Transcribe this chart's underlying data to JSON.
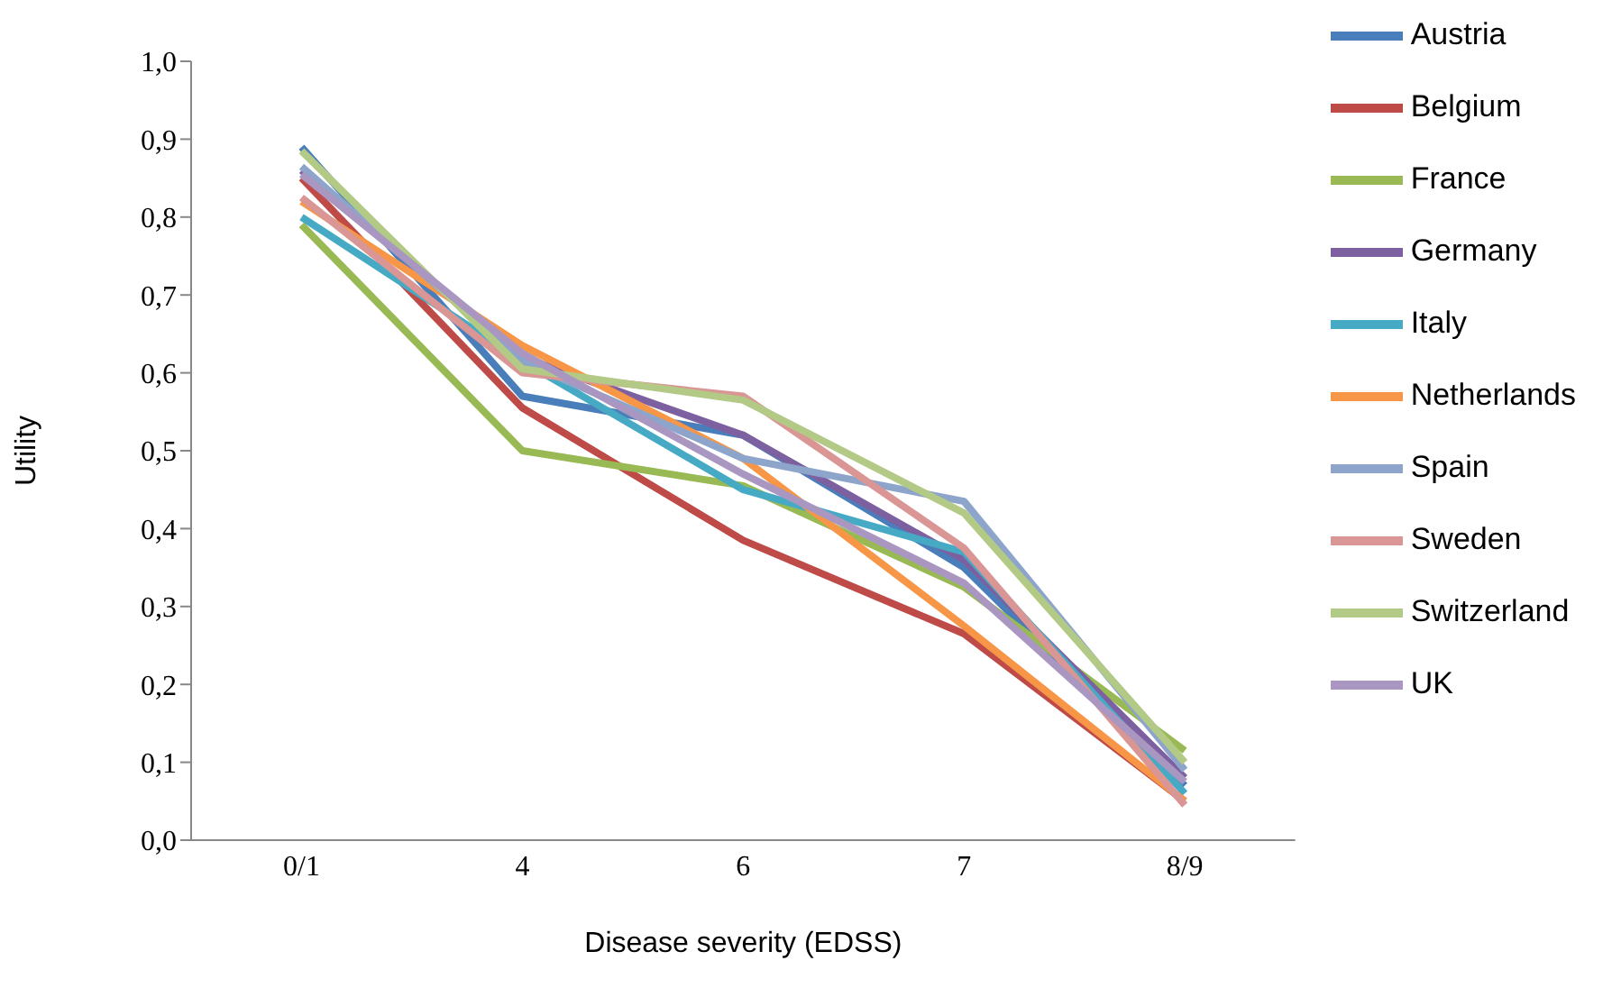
{
  "chart_data": {
    "type": "line",
    "xlabel": "Disease severity (EDSS)",
    "ylabel": "Utility",
    "categories": [
      "0/1",
      "4",
      "6",
      "7",
      "8/9"
    ],
    "ylim": [
      0,
      1
    ],
    "yticks": [
      {
        "value": 0,
        "label": "0,0"
      },
      {
        "value": 0.1,
        "label": "0,1"
      },
      {
        "value": 0.2,
        "label": "0,2"
      },
      {
        "value": 0.3,
        "label": "0,3"
      },
      {
        "value": 0.4,
        "label": "0,4"
      },
      {
        "value": 0.5,
        "label": "0,5"
      },
      {
        "value": 0.6,
        "label": "0,6"
      },
      {
        "value": 0.7,
        "label": "0,7"
      },
      {
        "value": 0.8,
        "label": "0,8"
      },
      {
        "value": 0.9,
        "label": "0,9"
      },
      {
        "value": 1,
        "label": "1,0"
      }
    ],
    "grid": false,
    "legend": "top right",
    "marker": "none",
    "line_style": "solid",
    "series": [
      {
        "name": "Austria",
        "color": "#4a7ebb",
        "values": [
          0.89,
          0.57,
          0.52,
          0.35,
          0.07
        ]
      },
      {
        "name": "Belgium",
        "color": "#be4b48",
        "values": [
          0.85,
          0.555,
          0.385,
          0.265,
          0.05
        ]
      },
      {
        "name": "France",
        "color": "#98b954",
        "values": [
          0.79,
          0.5,
          0.455,
          0.325,
          0.115
        ]
      },
      {
        "name": "Germany",
        "color": "#7d60a0",
        "values": [
          0.86,
          0.62,
          0.52,
          0.36,
          0.08
        ]
      },
      {
        "name": "Italy",
        "color": "#46aac5",
        "values": [
          0.8,
          0.615,
          0.45,
          0.37,
          0.06
        ]
      },
      {
        "name": "Netherlands",
        "color": "#f79646",
        "values": [
          0.82,
          0.635,
          0.49,
          0.275,
          0.05
        ]
      },
      {
        "name": "Spain",
        "color": "#8ea5cb",
        "values": [
          0.865,
          0.615,
          0.49,
          0.435,
          0.09
        ]
      },
      {
        "name": "Sweden",
        "color": "#d99694",
        "values": [
          0.825,
          0.6,
          0.57,
          0.375,
          0.045
        ]
      },
      {
        "name": "Switzerland",
        "color": "#b3ca86",
        "values": [
          0.885,
          0.605,
          0.565,
          0.42,
          0.1
        ]
      },
      {
        "name": "UK",
        "color": "#a997c1",
        "values": [
          0.855,
          0.625,
          0.47,
          0.33,
          0.075
        ]
      }
    ]
  }
}
